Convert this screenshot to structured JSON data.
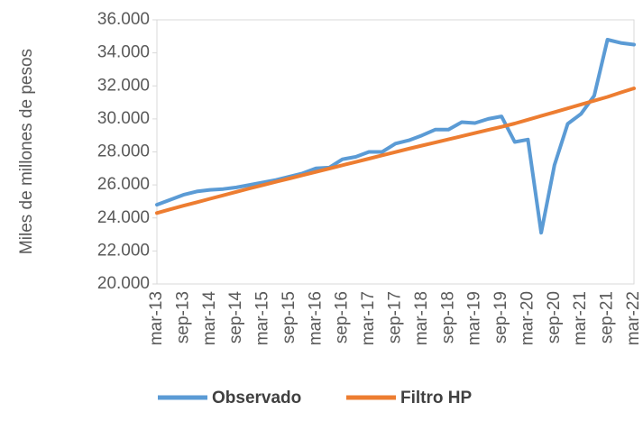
{
  "chart_data": {
    "type": "line",
    "y_label": "Miles de millones de pesos",
    "categories": [
      "mar-13",
      null,
      "sep-13",
      null,
      "mar-14",
      null,
      "sep-14",
      null,
      "mar-15",
      null,
      "sep-15",
      null,
      "mar-16",
      null,
      "sep-16",
      null,
      "mar-17",
      null,
      "sep-17",
      null,
      "mar-18",
      null,
      "sep-18",
      null,
      "mar-19",
      null,
      "sep-19",
      null,
      "mar-20",
      null,
      "sep-20",
      null,
      "mar-21",
      null,
      "sep-21",
      null,
      "mar-22"
    ],
    "series": [
      {
        "name": "Observado",
        "color": "#5b9bd5",
        "values": [
          24800,
          25100,
          25400,
          25600,
          25700,
          25750,
          25850,
          26000,
          26150,
          26300,
          26500,
          26700,
          27000,
          27050,
          27550,
          27700,
          28000,
          28000,
          28500,
          28700,
          29000,
          29350,
          29350,
          29800,
          29750,
          30000,
          30150,
          28600,
          28750,
          23100,
          27200,
          29700,
          30300,
          31400,
          34800,
          34600,
          34500
        ]
      },
      {
        "name": "Filtro HP",
        "color": "#ed7d31",
        "values": [
          24300,
          24520,
          24740,
          24950,
          25160,
          25370,
          25580,
          25790,
          25990,
          26190,
          26390,
          26590,
          26790,
          26990,
          27190,
          27390,
          27590,
          27790,
          27990,
          28190,
          28380,
          28570,
          28760,
          28950,
          29140,
          29330,
          29520,
          29720,
          29950,
          30180,
          30410,
          30640,
          30870,
          31100,
          31330,
          31600,
          31850
        ]
      }
    ],
    "ylim": [
      20000,
      36000
    ],
    "yticks": [
      {
        "value": 20000,
        "label": "20.000"
      },
      {
        "value": 22000,
        "label": "22.000"
      },
      {
        "value": 24000,
        "label": "24.000"
      },
      {
        "value": 26000,
        "label": "26.000"
      },
      {
        "value": 28000,
        "label": "28.000"
      },
      {
        "value": 30000,
        "label": "30.000"
      },
      {
        "value": 32000,
        "label": "32.000"
      },
      {
        "value": 34000,
        "label": "34.000"
      },
      {
        "value": 36000,
        "label": "36.000"
      }
    ],
    "legend": "bottom"
  }
}
